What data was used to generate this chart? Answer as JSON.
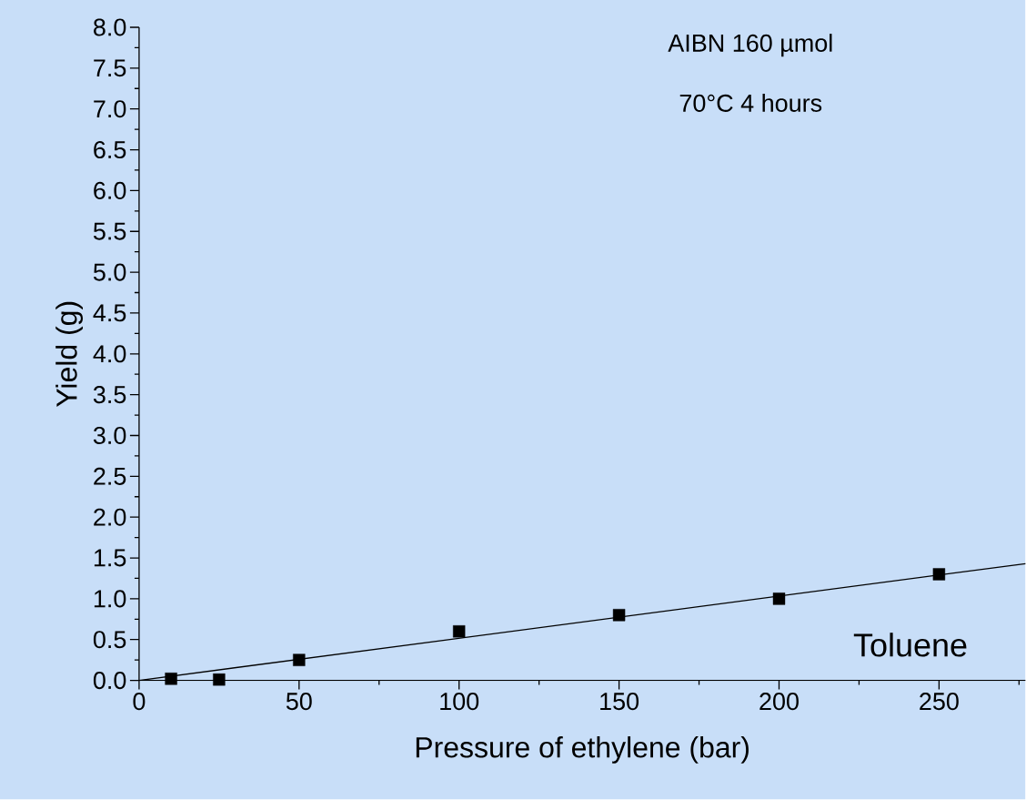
{
  "chart_data": {
    "type": "scatter",
    "xlabel": "Pressure of ethylene (bar)",
    "ylabel": "Yield (g)",
    "annotations": [
      "AIBN 160 µmol",
      "70°C 4 hours"
    ],
    "series": [
      {
        "name": "Toluene",
        "type": "scatter",
        "color": "#000000",
        "marker": "square",
        "x": [
          10,
          25,
          50,
          100,
          150,
          200,
          250
        ],
        "values": [
          0.02,
          0.01,
          0.25,
          0.6,
          0.8,
          1.0,
          1.3
        ]
      },
      {
        "type": "line",
        "color": "#000000",
        "marker": "none",
        "line_style": "solid",
        "x": [
          0,
          277
        ],
        "values": [
          0,
          1.43
        ]
      }
    ],
    "xlim": [
      0,
      277
    ],
    "ylim": [
      0,
      8
    ],
    "xticks": [
      0,
      {
        "value": 25,
        "label": null
      },
      50,
      {
        "value": 75,
        "label": null
      },
      100,
      {
        "value": 125,
        "label": null
      },
      150,
      {
        "value": 175,
        "label": null
      },
      200,
      {
        "value": 225,
        "label": null
      },
      250,
      {
        "value": 275,
        "label": null
      }
    ],
    "yticks": [
      {
        "value": 0,
        "label": "0.0"
      },
      {
        "value": 0.25,
        "label": null
      },
      {
        "value": 0.5,
        "label": "0.5"
      },
      {
        "value": 0.75,
        "label": null
      },
      {
        "value": 1,
        "label": "1.0"
      },
      {
        "value": 1.25,
        "label": null
      },
      {
        "value": 1.5,
        "label": "1.5"
      },
      {
        "value": 1.75,
        "label": null
      },
      {
        "value": 2,
        "label": "2.0"
      },
      {
        "value": 2.25,
        "label": null
      },
      {
        "value": 2.5,
        "label": "2.5"
      },
      {
        "value": 2.75,
        "label": null
      },
      {
        "value": 3,
        "label": "3.0"
      },
      {
        "value": 3.25,
        "label": null
      },
      {
        "value": 3.5,
        "label": "3.5"
      },
      {
        "value": 3.75,
        "label": null
      },
      {
        "value": 4,
        "label": "4.0"
      },
      {
        "value": 4.25,
        "label": null
      },
      {
        "value": 4.5,
        "label": "4.5"
      },
      {
        "value": 4.75,
        "label": null
      },
      {
        "value": 5,
        "label": "5.0"
      },
      {
        "value": 5.25,
        "label": null
      },
      {
        "value": 5.5,
        "label": "5.5"
      },
      {
        "value": 5.75,
        "label": null
      },
      {
        "value": 6,
        "label": "6.0"
      },
      {
        "value": 6.25,
        "label": null
      },
      {
        "value": 6.5,
        "label": "6.5"
      },
      {
        "value": 6.75,
        "label": null
      },
      {
        "value": 7,
        "label": "7.0"
      },
      {
        "value": 7.25,
        "label": null
      },
      {
        "value": 7.5,
        "label": "7.5"
      },
      {
        "value": 7.75,
        "label": null
      },
      {
        "value": 8,
        "label": "8.0"
      }
    ]
  }
}
